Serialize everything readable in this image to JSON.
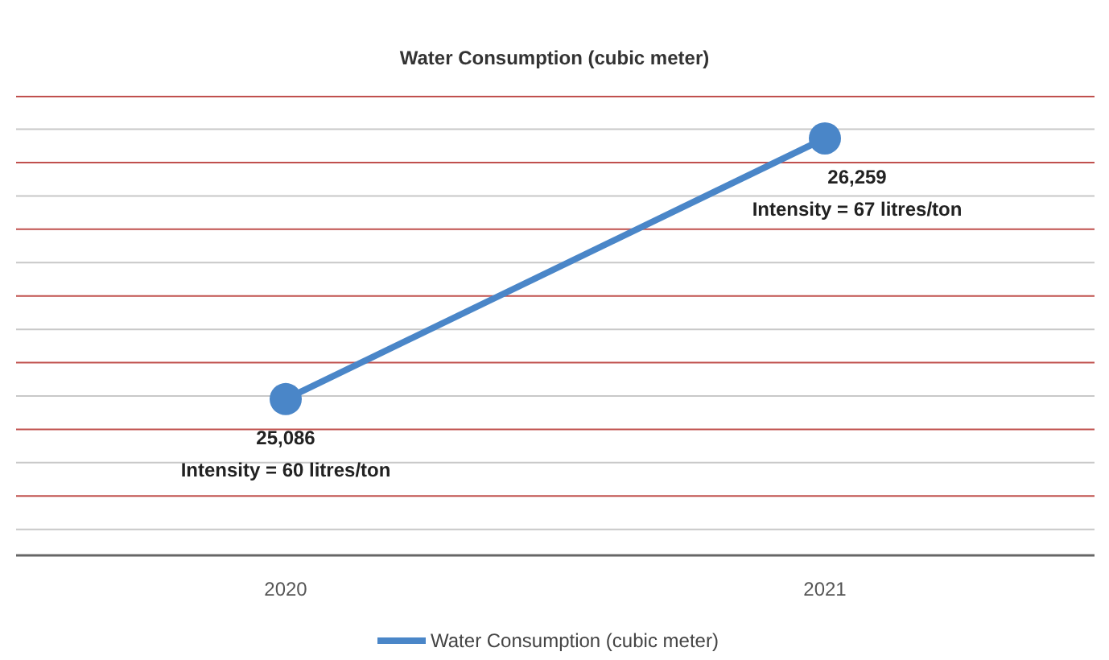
{
  "chart_data": {
    "type": "line",
    "title": "Water Consumption (cubic meter)",
    "categories": [
      "2020",
      "2021"
    ],
    "series": [
      {
        "name": "Water Consumption (cubic meter)",
        "color": "#4a86c8",
        "values": [
          25086,
          26259
        ],
        "value_labels": [
          "25,086",
          "26,259"
        ]
      }
    ],
    "ylim": [
      24383,
      26447
    ],
    "yticks": [
      {
        "value": 24500,
        "label": null
      },
      {
        "value": 24650,
        "label": null
      },
      {
        "value": 24800,
        "label": null
      },
      {
        "value": 24950,
        "label": null
      },
      {
        "value": 25100,
        "label": null
      },
      {
        "value": 25250,
        "label": null
      },
      {
        "value": 25400,
        "label": null
      },
      {
        "value": 25550,
        "label": null
      },
      {
        "value": 25700,
        "label": null
      },
      {
        "value": 25850,
        "label": null
      },
      {
        "value": 26000,
        "label": null
      },
      {
        "value": 26150,
        "label": null
      },
      {
        "value": 26300,
        "label": null
      },
      {
        "value": 26447,
        "label": null
      }
    ],
    "marker": "circle",
    "legend": "bottom",
    "grid": "y",
    "tick_labels": "x",
    "annotations": [
      "Intensity = 60 litres/ton",
      "Intensity = 67 litres/ton"
    ]
  }
}
